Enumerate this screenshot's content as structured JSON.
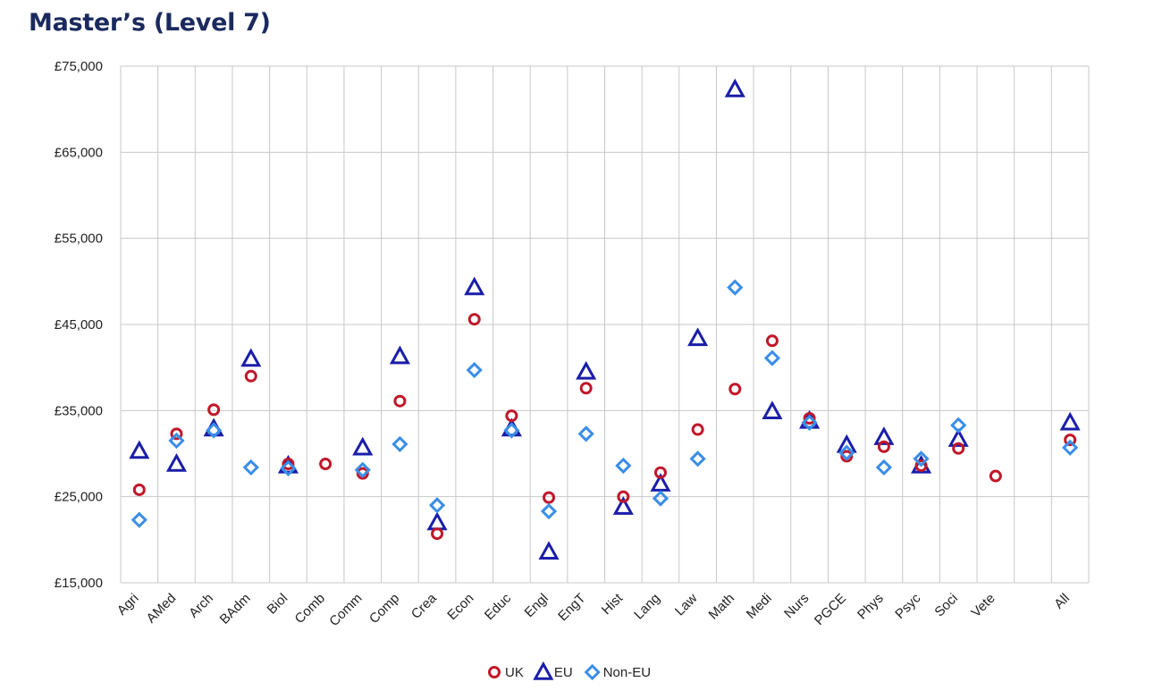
{
  "chart_data": {
    "type": "scatter",
    "title": "Master’s (Level 7)",
    "xlabel": "",
    "ylabel": "",
    "ylim": [
      15000,
      75000
    ],
    "yticks": [
      15000,
      25000,
      35000,
      45000,
      55000,
      65000,
      75000
    ],
    "ytick_labels": [
      "£15,000",
      "£25,000",
      "£35,000",
      "£45,000",
      "£55,000",
      "£65,000",
      "£75,000"
    ],
    "categories": [
      "Agri",
      "AMed",
      "Arch",
      "BAdm",
      "Biol",
      "Comb",
      "Comm",
      "Comp",
      "Crea",
      "Econ",
      "Educ",
      "Engl",
      "EngT",
      "Hist",
      "Lang",
      "Law",
      "Math",
      "Medi",
      "Nurs",
      "PGCE",
      "Phys",
      "Psyc",
      "Soci",
      "Vete",
      "",
      "All"
    ],
    "grid": true,
    "legend_position": "bottom",
    "series": [
      {
        "name": "UK",
        "marker": "circle",
        "color": "#c0182a",
        "values": [
          25800,
          32300,
          35100,
          39000,
          28800,
          28800,
          27700,
          36100,
          20700,
          45600,
          34400,
          24900,
          37600,
          25000,
          27800,
          32800,
          37500,
          43100,
          34100,
          29700,
          30800,
          28600,
          30600,
          27400,
          null,
          31600
        ]
      },
      {
        "name": "EU",
        "marker": "triangle",
        "color": "#1a1ea8",
        "values": [
          30300,
          28800,
          32900,
          41000,
          28600,
          null,
          30700,
          41300,
          22000,
          49300,
          32900,
          18600,
          39500,
          23800,
          26500,
          43400,
          72300,
          34900,
          33800,
          31000,
          31900,
          28600,
          31700,
          null,
          null,
          33600
        ]
      },
      {
        "name": "Non-EU",
        "marker": "diamond",
        "color": "#3a8ee6",
        "values": [
          22300,
          31500,
          32700,
          28400,
          28300,
          null,
          28100,
          31100,
          24000,
          39700,
          32700,
          23300,
          32300,
          28600,
          24800,
          29400,
          49300,
          41100,
          33600,
          30100,
          28400,
          29400,
          33300,
          null,
          null,
          30700
        ]
      }
    ]
  }
}
